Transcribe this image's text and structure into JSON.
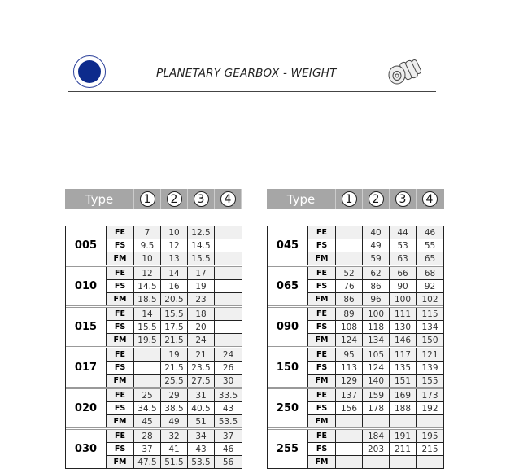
{
  "header": {
    "title": "PLANETARY GEARBOX - WEIGHT",
    "logo_icon": "company-seal-logo",
    "product_icon": "planetary-gearbox-image"
  },
  "tables": [
    {
      "header": {
        "type": "Type",
        "cols": [
          "1",
          "2",
          "3",
          "4"
        ]
      },
      "groups": [
        {
          "name": "005",
          "rows": [
            {
              "label": "FE",
              "values": [
                "7",
                "10",
                "12.5",
                ""
              ]
            },
            {
              "label": "FS",
              "values": [
                "9.5",
                "12",
                "14.5",
                ""
              ]
            },
            {
              "label": "FM",
              "values": [
                "10",
                "13",
                "15.5",
                ""
              ]
            }
          ]
        },
        {
          "name": "010",
          "rows": [
            {
              "label": "FE",
              "values": [
                "12",
                "14",
                "17",
                ""
              ]
            },
            {
              "label": "FS",
              "values": [
                "14.5",
                "16",
                "19",
                ""
              ]
            },
            {
              "label": "FM",
              "values": [
                "18.5",
                "20.5",
                "23",
                ""
              ]
            }
          ]
        },
        {
          "name": "015",
          "rows": [
            {
              "label": "FE",
              "values": [
                "14",
                "15.5",
                "18",
                ""
              ]
            },
            {
              "label": "FS",
              "values": [
                "15.5",
                "17.5",
                "20",
                ""
              ]
            },
            {
              "label": "FM",
              "values": [
                "19.5",
                "21.5",
                "24",
                ""
              ]
            }
          ]
        },
        {
          "name": "017",
          "rows": [
            {
              "label": "FE",
              "values": [
                "",
                "19",
                "21",
                "24"
              ]
            },
            {
              "label": "FS",
              "values": [
                "",
                "21.5",
                "23.5",
                "26"
              ]
            },
            {
              "label": "FM",
              "values": [
                "",
                "25.5",
                "27.5",
                "30"
              ]
            }
          ]
        },
        {
          "name": "020",
          "rows": [
            {
              "label": "FE",
              "values": [
                "25",
                "29",
                "31",
                "33.5"
              ]
            },
            {
              "label": "FS",
              "values": [
                "34.5",
                "38.5",
                "40.5",
                "43"
              ]
            },
            {
              "label": "FM",
              "values": [
                "45",
                "49",
                "51",
                "53.5"
              ]
            }
          ]
        },
        {
          "name": "030",
          "rows": [
            {
              "label": "FE",
              "values": [
                "28",
                "32",
                "34",
                "37"
              ]
            },
            {
              "label": "FS",
              "values": [
                "37",
                "41",
                "43",
                "46"
              ]
            },
            {
              "label": "FM",
              "values": [
                "47.5",
                "51.5",
                "53.5",
                "56"
              ]
            }
          ]
        }
      ]
    },
    {
      "header": {
        "type": "Type",
        "cols": [
          "1",
          "2",
          "3",
          "4"
        ]
      },
      "groups": [
        {
          "name": "045",
          "rows": [
            {
              "label": "FE",
              "values": [
                "",
                "40",
                "44",
                "46"
              ]
            },
            {
              "label": "FS",
              "values": [
                "",
                "49",
                "53",
                "55"
              ]
            },
            {
              "label": "FM",
              "values": [
                "",
                "59",
                "63",
                "65"
              ]
            }
          ]
        },
        {
          "name": "065",
          "rows": [
            {
              "label": "FE",
              "values": [
                "52",
                "62",
                "66",
                "68"
              ]
            },
            {
              "label": "FS",
              "values": [
                "76",
                "86",
                "90",
                "92"
              ]
            },
            {
              "label": "FM",
              "values": [
                "86",
                "96",
                "100",
                "102"
              ]
            }
          ]
        },
        {
          "name": "090",
          "rows": [
            {
              "label": "FE",
              "values": [
                "89",
                "100",
                "111",
                "115"
              ]
            },
            {
              "label": "FS",
              "values": [
                "108",
                "118",
                "130",
                "134"
              ]
            },
            {
              "label": "FM",
              "values": [
                "124",
                "134",
                "146",
                "150"
              ]
            }
          ]
        },
        {
          "name": "150",
          "rows": [
            {
              "label": "FE",
              "values": [
                "95",
                "105",
                "117",
                "121"
              ]
            },
            {
              "label": "FS",
              "values": [
                "113",
                "124",
                "135",
                "139"
              ]
            },
            {
              "label": "FM",
              "values": [
                "129",
                "140",
                "151",
                "155"
              ]
            }
          ]
        },
        {
          "name": "250",
          "rows": [
            {
              "label": "FE",
              "values": [
                "137",
                "159",
                "169",
                "173"
              ]
            },
            {
              "label": "FS",
              "values": [
                "156",
                "178",
                "188",
                "192"
              ]
            },
            {
              "label": "FM",
              "values": [
                "",
                "",
                "",
                ""
              ]
            }
          ]
        },
        {
          "name": "255",
          "rows": [
            {
              "label": "FE",
              "values": [
                "",
                "184",
                "191",
                "195"
              ]
            },
            {
              "label": "FS",
              "values": [
                "",
                "203",
                "211",
                "215"
              ]
            },
            {
              "label": "FM",
              "values": [
                "",
                "",
                "",
                ""
              ]
            }
          ]
        }
      ]
    }
  ]
}
